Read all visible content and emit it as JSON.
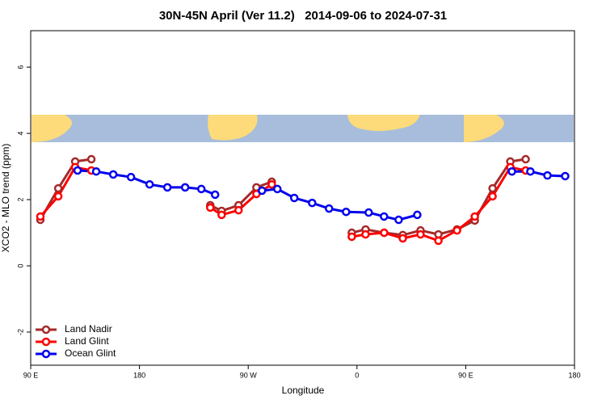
{
  "chart_data": {
    "type": "line",
    "title": "30N-45N April (Ver 11.2)   2014-09-06 to 2024-07-31",
    "x_label": "Longitude",
    "y_label": "XCO2 - MLO trend (ppm)",
    "xlim": [
      90,
      540
    ],
    "xticks": [
      {
        "value": 90,
        "label": "90 E"
      },
      {
        "value": 180,
        "label": "180"
      },
      {
        "value": 270,
        "label": "90 W"
      },
      {
        "value": 360,
        "label": "0"
      },
      {
        "value": 450,
        "label": "90 E"
      },
      {
        "value": 540,
        "label": "180"
      }
    ],
    "ylim": [
      -3,
      7.1
    ],
    "yticks": [
      -2,
      0,
      2,
      4,
      6
    ],
    "legend": "bottom-left",
    "series": [
      {
        "name": "Land Nadir",
        "color": "#a52a2a",
        "x": [
          98.0,
          112.8,
          126.8,
          140.2,
          null,
          238.6,
          248.0,
          262.0,
          276.8,
          289.5,
          null,
          355.7,
          367.1,
          382.5,
          397.9,
          412.6,
          427.4,
          442.8,
          457.5,
          472.2,
          486.9,
          499.6
        ],
        "values": [
          1.39,
          2.34,
          3.15,
          3.22,
          null,
          1.83,
          1.66,
          1.83,
          2.37,
          2.54,
          null,
          1.0,
          1.1,
          1.0,
          0.93,
          1.07,
          0.95,
          1.1,
          1.37,
          2.34,
          3.15,
          3.22
        ]
      },
      {
        "name": "Land Glint",
        "color": "#ff0000",
        "x": [
          98.0,
          112.8,
          126.8,
          140.2,
          null,
          238.6,
          248.0,
          262.0,
          276.8,
          289.5,
          null,
          355.7,
          367.1,
          382.5,
          397.9,
          412.6,
          427.4,
          442.8,
          457.5,
          472.2,
          486.9,
          499.6
        ],
        "values": [
          1.49,
          2.1,
          2.98,
          2.88,
          null,
          1.76,
          1.54,
          1.68,
          2.17,
          2.46,
          null,
          0.88,
          0.95,
          1.0,
          0.83,
          0.95,
          0.76,
          1.07,
          1.49,
          2.1,
          2.98,
          2.88
        ]
      },
      {
        "name": "Ocean Glint",
        "color": "#0000ee",
        "x": [
          128.8,
          144.2,
          158.3,
          173.0,
          188.4,
          203.1,
          217.8,
          231.2,
          242.6,
          null,
          281.4,
          294.1,
          308.1,
          322.9,
          336.9,
          351.0,
          369.7,
          382.4,
          394.5,
          409.9,
          null,
          488.2,
          503.5,
          517.6,
          532.3
        ],
        "values": [
          2.88,
          2.85,
          2.76,
          2.68,
          2.46,
          2.37,
          2.37,
          2.32,
          2.15,
          null,
          2.27,
          2.32,
          2.05,
          1.9,
          1.73,
          1.63,
          1.61,
          1.49,
          1.39,
          1.54,
          null,
          2.85,
          2.85,
          2.73,
          2.71
        ]
      }
    ]
  }
}
